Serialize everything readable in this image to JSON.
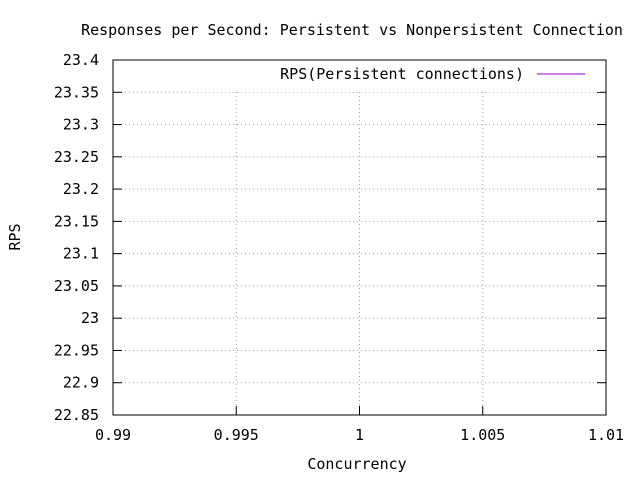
{
  "chart_data": {
    "type": "line",
    "title": "Responses per Second: Persistent vs Nonpersistent Connection",
    "xlabel": "Concurrency",
    "ylabel": "RPS",
    "xlim": [
      0.99,
      1.01
    ],
    "ylim": [
      22.85,
      23.4
    ],
    "xticks": [
      0.99,
      0.995,
      1,
      1.005,
      1.01
    ],
    "xtick_labels": [
      "0.99",
      "0.995",
      "1",
      "1.005",
      "1.01"
    ],
    "yticks": [
      22.85,
      22.9,
      22.95,
      23,
      23.05,
      23.1,
      23.15,
      23.2,
      23.25,
      23.3,
      23.35,
      23.4
    ],
    "ytick_labels": [
      "22.85",
      "22.9",
      "22.95",
      "23",
      "23.05",
      "23.1",
      "23.15",
      "23.2",
      "23.25",
      "23.3",
      "23.35",
      "23.4"
    ],
    "grid": true,
    "legend_position": "top-right",
    "series": [
      {
        "name": "RPS(Persistent connections)",
        "color": "#9400d3",
        "points": []
      }
    ]
  }
}
